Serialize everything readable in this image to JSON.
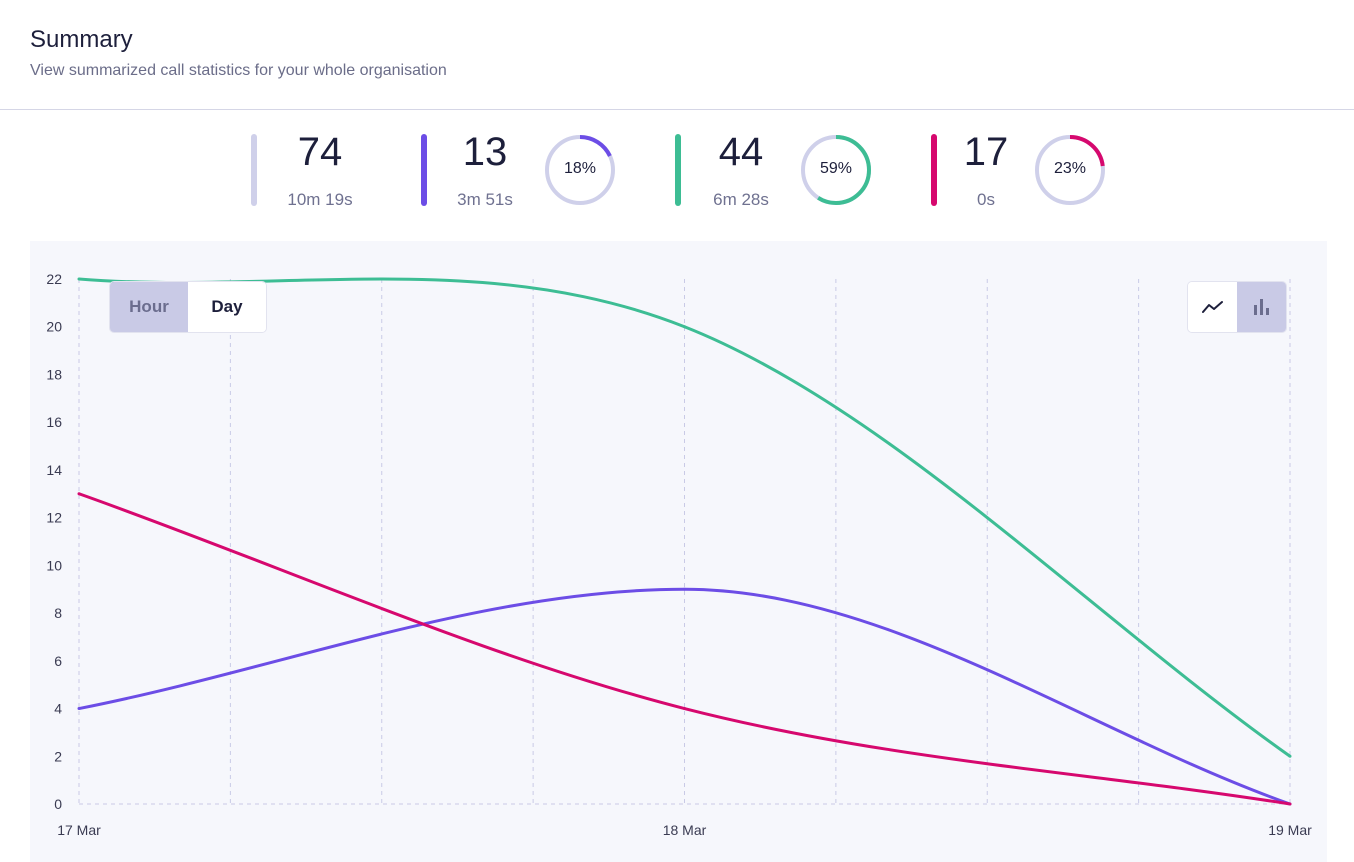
{
  "header": {
    "title": "Summary",
    "subtitle": "View summarized call statistics for your whole organisation"
  },
  "stats": [
    {
      "value": "74",
      "duration": "10m 19s",
      "color": "#cfd0ea"
    },
    {
      "value": "13",
      "duration": "3m 51s",
      "color": "#6c4de6",
      "percent": "18%",
      "fraction": 0.18
    },
    {
      "value": "44",
      "duration": "6m 28s",
      "color": "#3dbd94",
      "percent": "59%",
      "fraction": 0.59
    },
    {
      "value": "17",
      "duration": "0s",
      "color": "#d6086e",
      "percent": "23%",
      "fraction": 0.23
    }
  ],
  "controls": {
    "granularity": [
      {
        "label": "Hour",
        "selected": true
      },
      {
        "label": "Day",
        "selected": false
      }
    ],
    "chart_types": [
      {
        "icon": "line-chart-icon",
        "selected": false
      },
      {
        "icon": "bar-chart-icon",
        "selected": true
      }
    ]
  },
  "chart_data": {
    "type": "line",
    "x": [
      "17 Mar",
      "18 Mar",
      "19 Mar"
    ],
    "ylim": [
      0,
      22
    ],
    "yticks": [
      "0",
      "2",
      "4",
      "6",
      "8",
      "10",
      "12",
      "14",
      "16",
      "18",
      "20",
      "22"
    ],
    "series": [
      {
        "name": "teal",
        "color": "#3dbd94",
        "values": [
          22,
          20,
          2
        ]
      },
      {
        "name": "purple",
        "color": "#6c4de6",
        "values": [
          4,
          9,
          0
        ]
      },
      {
        "name": "magenta",
        "color": "#d6086e",
        "values": [
          13,
          4,
          0
        ]
      }
    ]
  }
}
